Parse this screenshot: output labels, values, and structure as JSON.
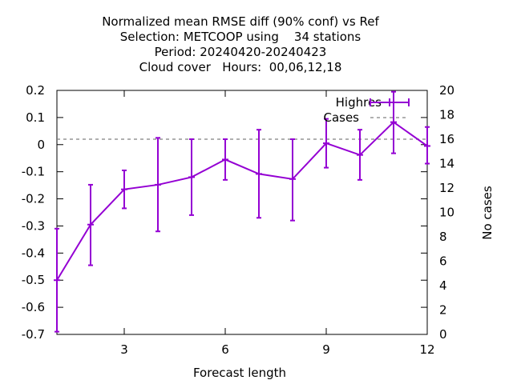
{
  "title_lines": [
    "Normalized mean RMSE diff (90% conf) vs Ref",
    "Selection: METCOOP using    34 stations",
    "Period: 20240420-20240423",
    "Cloud cover   Hours:  00,06,12,18"
  ],
  "colors": {
    "series": "#9400d3",
    "cases": "#808080",
    "axis": "#000000"
  },
  "chart_data": {
    "type": "line",
    "xlabel": "Forecast length",
    "ylabel": "",
    "y2label": "No cases",
    "xlim": [
      1,
      12
    ],
    "ylim": [
      -0.7,
      0.2
    ],
    "y2lim": [
      0,
      20
    ],
    "x_ticks": [
      3,
      6,
      9,
      12
    ],
    "y_ticks": [
      -0.7,
      -0.6,
      -0.5,
      -0.4,
      -0.3,
      -0.2,
      -0.1,
      0,
      0.1,
      0.2
    ],
    "y_tick_labels": [
      "-0.7",
      "-0.6",
      "-0.5",
      "-0.4",
      "-0.3",
      "-0.2",
      "-0.1",
      "0",
      "0.1",
      "0.2"
    ],
    "y2_ticks": [
      0,
      2,
      4,
      6,
      8,
      10,
      12,
      14,
      16,
      18,
      20
    ],
    "legend_position": "top-right",
    "series": [
      {
        "name": "Highres",
        "style": "errorbars",
        "x": [
          1,
          2,
          3,
          4,
          5,
          6,
          7,
          8,
          9,
          10,
          11,
          12
        ],
        "y": [
          -0.5,
          -0.295,
          -0.165,
          -0.148,
          -0.12,
          -0.055,
          -0.108,
          -0.127,
          0.005,
          -0.038,
          0.083,
          -0.005
        ],
        "y_low": [
          -0.69,
          -0.445,
          -0.235,
          -0.32,
          -0.26,
          -0.13,
          -0.27,
          -0.28,
          -0.085,
          -0.13,
          -0.032,
          -0.07
        ],
        "y_high": [
          -0.31,
          -0.148,
          -0.095,
          0.025,
          0.02,
          0.02,
          0.055,
          0.02,
          0.095,
          0.055,
          0.195,
          0.065
        ]
      },
      {
        "name": "Cases",
        "style": "dashed",
        "axis": "y2",
        "x": [
          1,
          2,
          3,
          4,
          5,
          6,
          7,
          8,
          9,
          10,
          11,
          12
        ],
        "y": [
          16,
          16,
          16,
          16,
          16,
          16,
          16,
          16,
          16,
          16,
          16,
          16
        ]
      }
    ]
  }
}
